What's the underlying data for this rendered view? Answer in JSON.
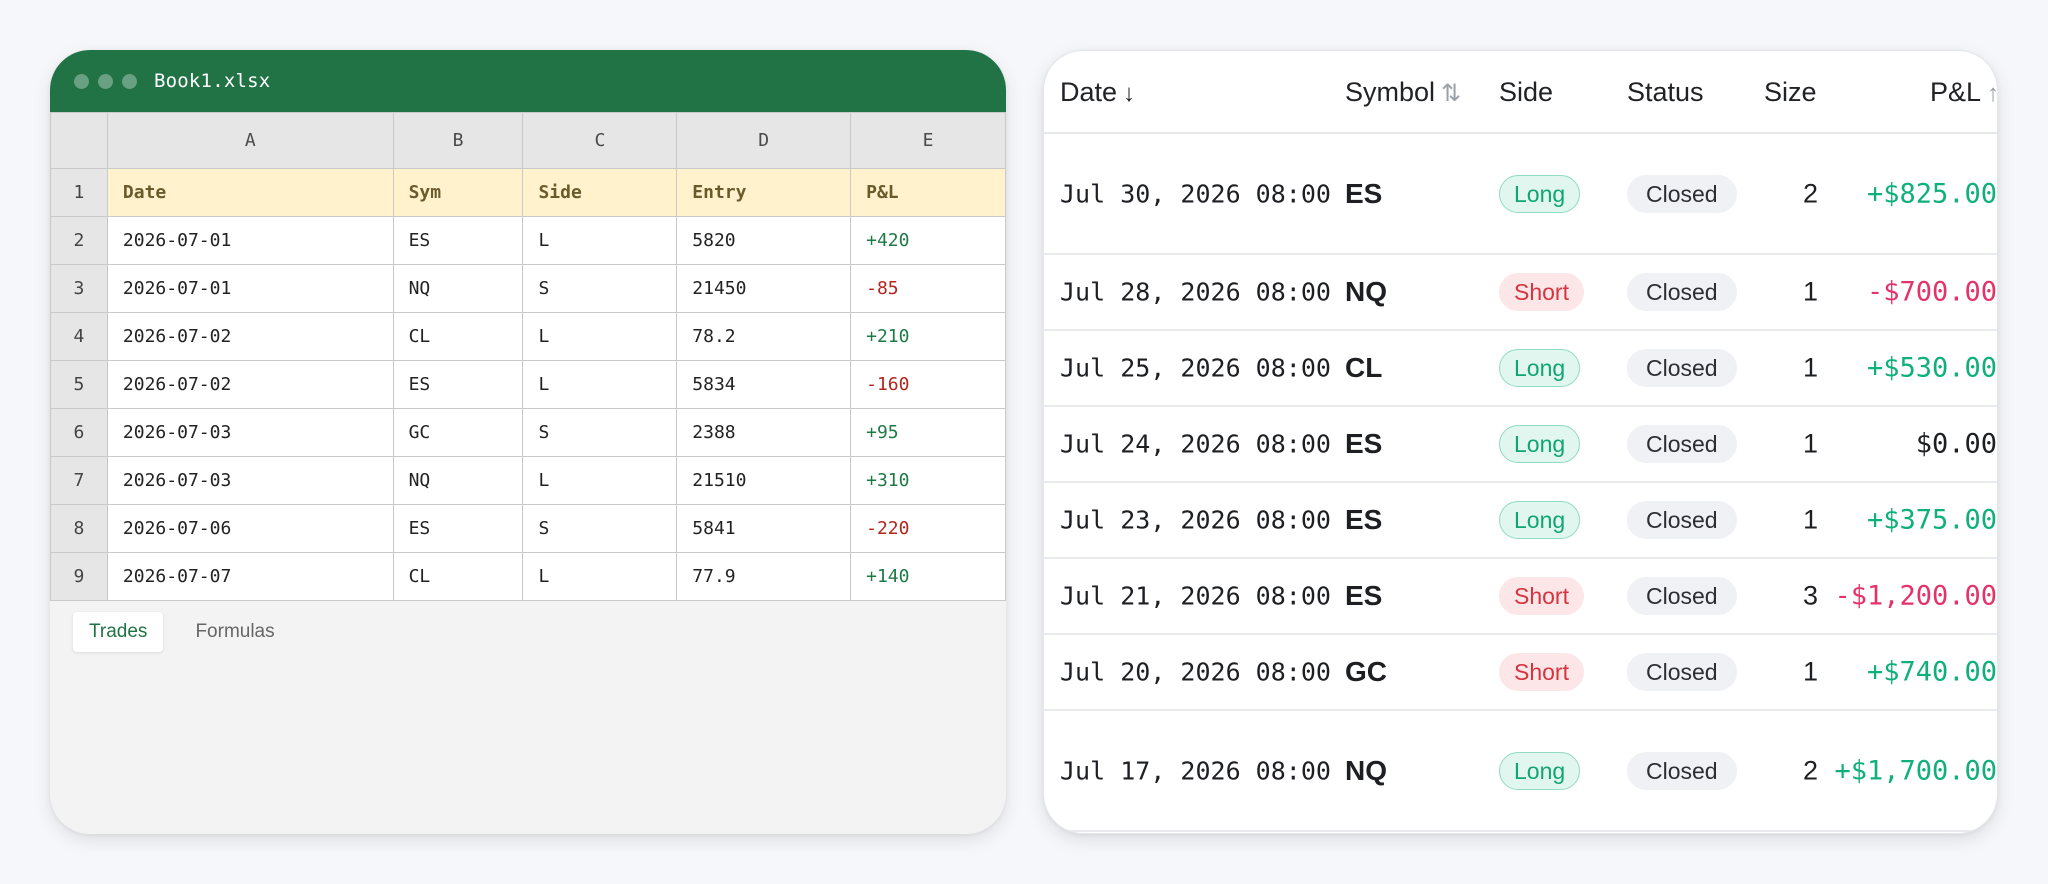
{
  "excel": {
    "title": "Book1.xlsx",
    "columns": [
      "A",
      "B",
      "C",
      "D",
      "E"
    ],
    "rows": [
      {
        "n": "1",
        "cells": [
          "Date",
          "Sym",
          "Side",
          "Entry",
          "P&L"
        ]
      },
      {
        "n": "2",
        "cells": [
          "2026-07-01",
          "ES",
          "L",
          "5820",
          "+420"
        ]
      },
      {
        "n": "3",
        "cells": [
          "2026-07-01",
          "NQ",
          "S",
          "21450",
          "-85"
        ]
      },
      {
        "n": "4",
        "cells": [
          "2026-07-02",
          "CL",
          "L",
          "78.2",
          "+210"
        ]
      },
      {
        "n": "5",
        "cells": [
          "2026-07-02",
          "ES",
          "L",
          "5834",
          "-160"
        ]
      },
      {
        "n": "6",
        "cells": [
          "2026-07-03",
          "GC",
          "S",
          "2388",
          "+95"
        ]
      },
      {
        "n": "7",
        "cells": [
          "2026-07-03",
          "NQ",
          "L",
          "21510",
          "+310"
        ]
      },
      {
        "n": "8",
        "cells": [
          "2026-07-06",
          "ES",
          "S",
          "5841",
          "-220"
        ]
      },
      {
        "n": "9",
        "cells": [
          "2026-07-07",
          "CL",
          "L",
          "77.9",
          "+140"
        ]
      }
    ],
    "sheet_tabs": [
      "Trades",
      "Formulas"
    ],
    "colors": {
      "titlebar": "#217346",
      "header_fill": "#fff2cc",
      "positive": "#1e7a46",
      "negative": "#b3261e"
    }
  },
  "trades": {
    "headers": {
      "date": "Date",
      "symbol": "Symbol",
      "side": "Side",
      "status": "Status",
      "size": "Size",
      "pnl": "P&L"
    },
    "sort_icons": {
      "date": "↓",
      "symbol": "⇅",
      "pnl": "↑"
    },
    "rows": [
      {
        "date": "Jul 30, 2026 08:00",
        "symbol": "ES",
        "side": "Long",
        "status": "Closed",
        "size": "2",
        "pnl": "+$825.00"
      },
      {
        "date": "Jul 28, 2026 08:00",
        "symbol": "NQ",
        "side": "Short",
        "status": "Closed",
        "size": "1",
        "pnl": "-$700.00"
      },
      {
        "date": "Jul 25, 2026 08:00",
        "symbol": "CL",
        "side": "Long",
        "status": "Closed",
        "size": "1",
        "pnl": "+$530.00"
      },
      {
        "date": "Jul 24, 2026 08:00",
        "symbol": "ES",
        "side": "Long",
        "status": "Closed",
        "size": "1",
        "pnl": "$0.00"
      },
      {
        "date": "Jul 23, 2026 08:00",
        "symbol": "ES",
        "side": "Long",
        "status": "Closed",
        "size": "1",
        "pnl": "+$375.00"
      },
      {
        "date": "Jul 21, 2026 08:00",
        "symbol": "ES",
        "side": "Short",
        "status": "Closed",
        "size": "3",
        "pnl": "-$1,200.00"
      },
      {
        "date": "Jul 20, 2026 08:00",
        "symbol": "GC",
        "side": "Short",
        "status": "Closed",
        "size": "1",
        "pnl": "+$740.00"
      },
      {
        "date": "Jul 17, 2026 08:00",
        "symbol": "NQ",
        "side": "Long",
        "status": "Closed",
        "size": "2",
        "pnl": "+$1,700.00"
      }
    ],
    "colors": {
      "long": "#12a574",
      "short": "#d6343f",
      "pnl_positive": "#10b07a",
      "pnl_negative": "#e4336a"
    }
  }
}
